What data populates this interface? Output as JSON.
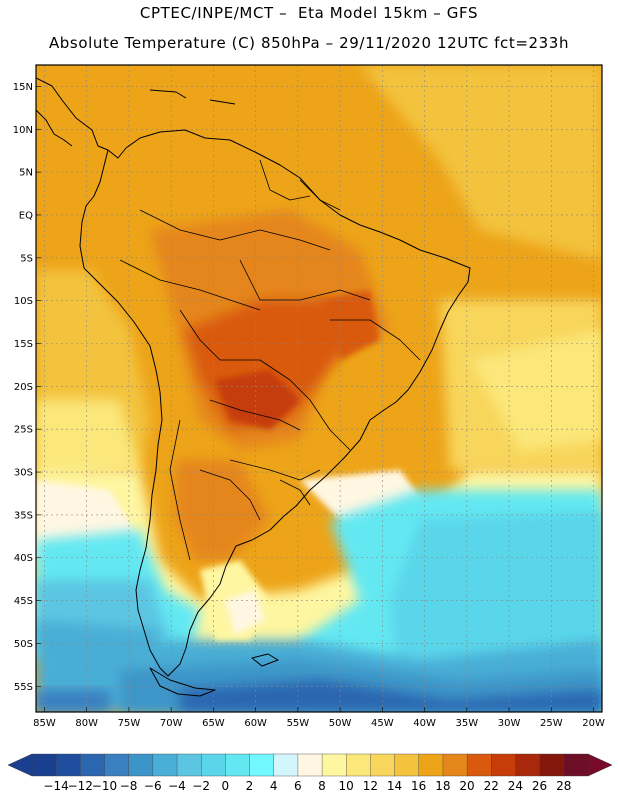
{
  "header": {
    "title": "CPTEC/INPE/MCT –  Eta Model 15km – GFS",
    "subtitle": "Absolute Temperature (C) 850hPa – 29/11/2020 12UTC fct=233h"
  },
  "map": {
    "lat_labels": [
      "15N",
      "10N",
      "5N",
      "EQ",
      "5S",
      "10S",
      "15S",
      "20S",
      "25S",
      "30S",
      "35S",
      "40S",
      "45S",
      "50S",
      "55S"
    ],
    "lon_labels": [
      "85W",
      "80W",
      "75W",
      "70W",
      "65W",
      "60W",
      "55W",
      "50W",
      "45W",
      "40W",
      "35W",
      "30W",
      "25W",
      "20W"
    ],
    "lat_range": [
      17.5,
      -58
    ],
    "lon_range": [
      -86,
      -19
    ],
    "gridlines": true
  },
  "colorbar": {
    "labels": [
      "-14",
      "-12",
      "-10",
      "-8",
      "-6",
      "-4",
      "-2",
      "0",
      "2",
      "4",
      "6",
      "8",
      "10",
      "12",
      "14",
      "16",
      "18",
      "20",
      "22",
      "24",
      "26",
      "28"
    ],
    "colors": [
      "#1a3f8f",
      "#1f4e9e",
      "#2b66b0",
      "#3a7fc0",
      "#3c95c8",
      "#4aaed6",
      "#5cc6e2",
      "#5ad6ea",
      "#63e8f2",
      "#72f8ff",
      "#d2f6fb",
      "#fff7e1",
      "#fef6a1",
      "#fbe77a",
      "#f8d65c",
      "#f3c33d",
      "#eda419",
      "#e5861a",
      "#d95a0e",
      "#c63d0a",
      "#a9270b",
      "#83170b",
      "#6b0e26"
    ]
  },
  "colors": {
    "tropical_warm": "#eda419",
    "hot_core": "#d95a0e",
    "cold_ocean": "#4aaed6",
    "deep_cold": "#2b66b0",
    "coast": "#000000"
  }
}
